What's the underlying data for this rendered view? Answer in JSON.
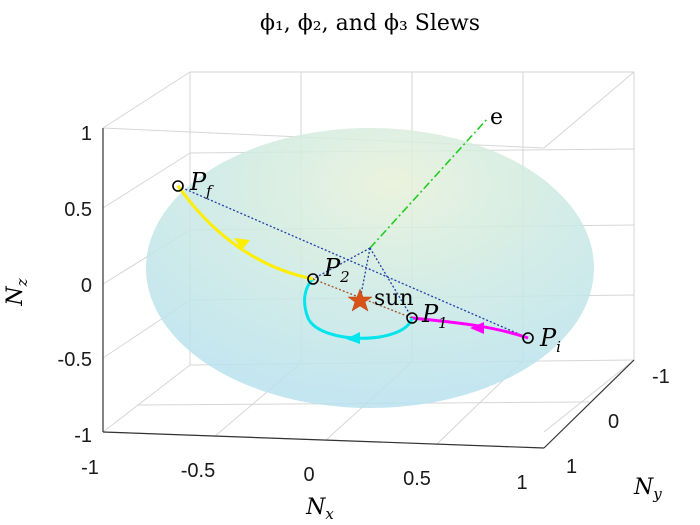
{
  "chart_data": {
    "type": "line",
    "projection": "3d",
    "title": "ϕ₁, ϕ₂, and ϕ₃ Slews",
    "xlabel": "N_x",
    "ylabel": "N_y",
    "zlabel": "N_z",
    "xlim": [
      -1,
      1
    ],
    "ylim": [
      -1,
      1
    ],
    "zlim": [
      -1,
      1
    ],
    "x_ticks": [
      "-1",
      "-0.5",
      "0",
      "0.5",
      "1"
    ],
    "y_ticks": [
      "-1",
      "0",
      "1"
    ],
    "z_ticks": [
      "-1",
      "-0.5",
      "0",
      "0.5",
      "1"
    ],
    "grid": true,
    "surface": {
      "type": "unit-sphere",
      "color": "#bfe6ea",
      "opacity": 0.7
    },
    "points": [
      {
        "label": "P_i",
        "x": 0.83,
        "y": -0.2,
        "z": -0.52
      },
      {
        "label": "P_1",
        "x": 0.4,
        "y": -0.15,
        "z": -0.42
      },
      {
        "label": "P_2",
        "x": -0.12,
        "y": -0.1,
        "z": -0.15
      },
      {
        "label": "P_f",
        "x": -0.78,
        "y": -0.2,
        "z": 0.52
      }
    ],
    "sun": {
      "label": "sun",
      "x": 0.15,
      "y": -0.1,
      "z": -0.38,
      "color": "#d95319"
    },
    "eigen_axis": {
      "label": "e",
      "color": "#22cc22"
    },
    "series": [
      {
        "from": "P_i",
        "to": "P_1",
        "color": "#ff00ff"
      },
      {
        "from": "P_1",
        "to": "P_2",
        "color": "#00e5ee"
      },
      {
        "from": "P_2",
        "to": "P_f",
        "color": "#ffee00"
      }
    ]
  }
}
